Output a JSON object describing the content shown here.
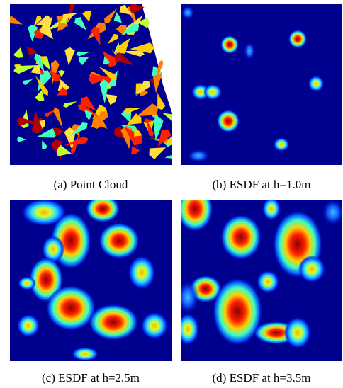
{
  "panels": [
    {
      "caption": "(a)  Point Cloud"
    },
    {
      "caption": "(b)  ESDF at h=1.0m"
    },
    {
      "caption": "(c)  ESDF at h=2.5m"
    },
    {
      "caption": "(d)  ESDF at h=3.5m"
    }
  ]
}
